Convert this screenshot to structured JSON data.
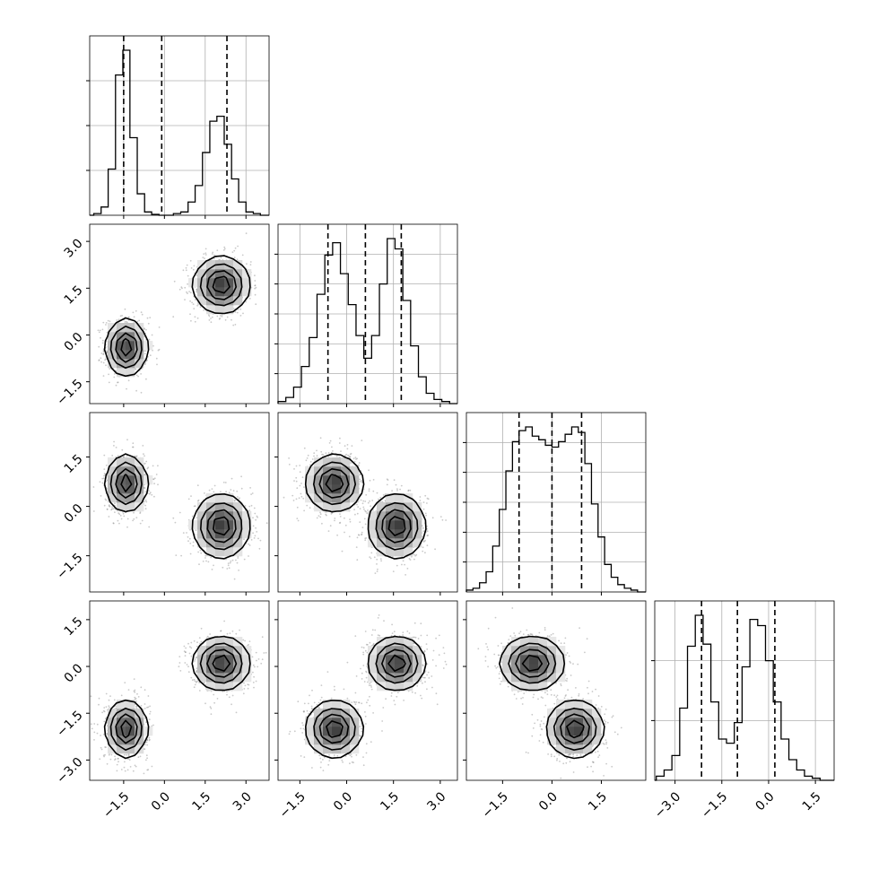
{
  "chart_data": {
    "type": "corner",
    "grid": true,
    "parameters": 4,
    "quantile_lines_style": "dashed",
    "histograms": [
      {
        "param": 0,
        "bin_edges": [
          -2.6,
          -2.33,
          -2.07,
          -1.8,
          -1.53,
          -1.27,
          -1.0,
          -0.73,
          -0.47,
          -0.2,
          0.07,
          0.33,
          0.6,
          0.87,
          1.13,
          1.4,
          1.67,
          1.93,
          2.2,
          2.47,
          2.73,
          3.0,
          3.27,
          3.53,
          3.8
        ],
        "counts": [
          1,
          5,
          28,
          85,
          100,
          47,
          13,
          2,
          0.5,
          0,
          0,
          1,
          2,
          8,
          18,
          38,
          57,
          60,
          43,
          22,
          8,
          2,
          1,
          0
        ],
        "quantiles": [
          -1.5,
          -0.1,
          2.3
        ],
        "ytick_fracs": [
          0.25,
          0.5,
          0.75
        ]
      },
      {
        "param": 1,
        "bin_edges": [
          -2.2,
          -1.95,
          -1.7,
          -1.45,
          -1.2,
          -0.95,
          -0.7,
          -0.45,
          -0.2,
          0.05,
          0.3,
          0.55,
          0.8,
          1.05,
          1.3,
          1.55,
          1.8,
          2.05,
          2.3,
          2.55,
          2.8,
          3.05,
          3.3,
          3.55
        ],
        "counts": [
          1,
          3,
          8,
          18,
          32,
          53,
          72,
          78,
          63,
          48,
          33,
          22,
          33,
          58,
          80,
          75,
          50,
          28,
          13,
          5,
          2,
          1,
          0
        ],
        "quantiles": [
          -0.6,
          0.6,
          1.75
        ],
        "ytick_fracs": [
          0.167,
          0.333,
          0.5,
          0.667,
          0.833
        ]
      },
      {
        "param": 2,
        "bin_edges": [
          -2.6,
          -2.4,
          -2.2,
          -2.0,
          -1.8,
          -1.6,
          -1.4,
          -1.2,
          -1.0,
          -0.8,
          -0.6,
          -0.4,
          -0.2,
          0.0,
          0.2,
          0.4,
          0.6,
          0.8,
          1.0,
          1.2,
          1.4,
          1.6,
          1.8,
          2.0,
          2.2,
          2.4,
          2.6,
          2.8
        ],
        "counts": [
          1,
          2,
          5,
          11,
          25,
          45,
          66,
          82,
          88,
          90,
          85,
          83,
          80,
          79,
          82,
          86,
          90,
          87,
          70,
          48,
          30,
          15,
          8,
          4,
          2,
          1,
          0
        ],
        "quantiles": [
          -1.0,
          0.0,
          0.9
        ],
        "ytick_fracs": [
          0.167,
          0.333,
          0.5,
          0.667,
          0.833
        ]
      },
      {
        "param": 3,
        "bin_edges": [
          -3.6,
          -3.35,
          -3.1,
          -2.85,
          -2.6,
          -2.35,
          -2.1,
          -1.85,
          -1.6,
          -1.35,
          -1.1,
          -0.85,
          -0.6,
          -0.35,
          -0.1,
          0.15,
          0.4,
          0.65,
          0.9,
          1.15,
          1.4,
          1.65,
          1.9
        ],
        "counts": [
          2,
          5,
          12,
          35,
          65,
          80,
          66,
          38,
          20,
          18,
          28,
          55,
          78,
          75,
          58,
          38,
          20,
          10,
          5,
          2,
          1,
          0
        ],
        "quantiles": [
          -2.15,
          -1.0,
          0.2
        ],
        "ytick_fracs": [
          0.333,
          0.667
        ]
      }
    ],
    "cluster_means": [
      [
        -1.4,
        -0.4,
        0.7,
        -2.0
      ],
      [
        2.1,
        1.6,
        -0.6,
        0.1
      ]
    ],
    "cluster_sd": [
      [
        0.35,
        0.42,
        0.4,
        0.42
      ],
      [
        0.48,
        0.42,
        0.45,
        0.4
      ]
    ],
    "ranges": [
      [
        -2.75,
        3.85
      ],
      [
        -2.2,
        3.55
      ],
      [
        -2.6,
        2.85
      ],
      [
        -3.65,
        2.1
      ]
    ],
    "ticks": [
      [
        -1.5,
        0.0,
        1.5,
        3.0
      ],
      [
        -1.5,
        0.0,
        1.5,
        3.0
      ],
      [
        -1.5,
        0.0,
        1.5
      ],
      [
        -3.0,
        -1.5,
        0.0,
        1.5
      ]
    ],
    "tick_labels": [
      [
        "−1.5",
        "0.0",
        "1.5",
        "3.0"
      ],
      [
        "−1.5",
        "0.0",
        "1.5",
        "3.0"
      ],
      [
        "−1.5",
        "0.0",
        "1.5"
      ],
      [
        "−3.0",
        "−1.5",
        "0.0",
        "1.5"
      ]
    ],
    "density_levels": [
      0.1,
      0.3,
      0.55,
      0.8
    ],
    "colors": {
      "line": "#000000",
      "grid": "#b0b0b0",
      "points": "#888888"
    }
  }
}
